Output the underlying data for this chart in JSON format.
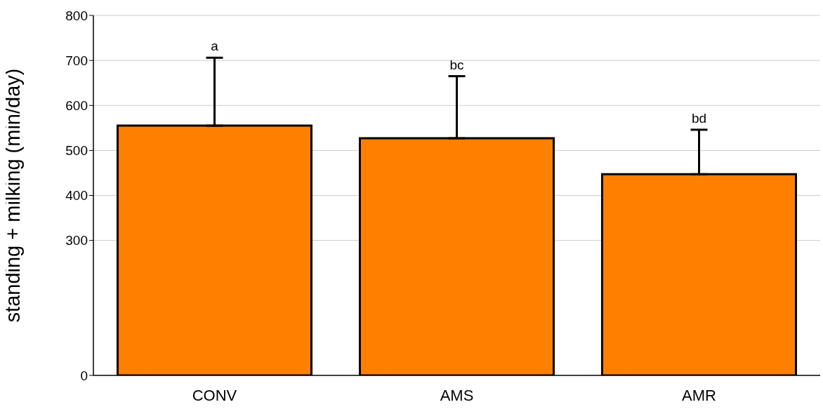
{
  "chart_data": {
    "type": "bar",
    "ylabel": "standing + milking (min/day)",
    "categories": [
      "CONV",
      "AMS",
      "AMR"
    ],
    "values": [
      555,
      527,
      447
    ],
    "color": "#ff8000",
    "errors": [
      [
        555,
        706
      ],
      [
        527,
        665
      ],
      [
        447,
        546
      ]
    ],
    "ylim": [
      0,
      800
    ],
    "yticks": [
      0,
      300,
      400,
      500,
      600,
      700,
      800
    ],
    "grid": "y",
    "legend": false,
    "annotations": [
      {
        "text": "a",
        "x": "CONV",
        "y": 706
      },
      {
        "text": "bc",
        "x": "AMS",
        "y": 665
      },
      {
        "text": "bd",
        "x": "AMR",
        "y": 546
      }
    ]
  }
}
